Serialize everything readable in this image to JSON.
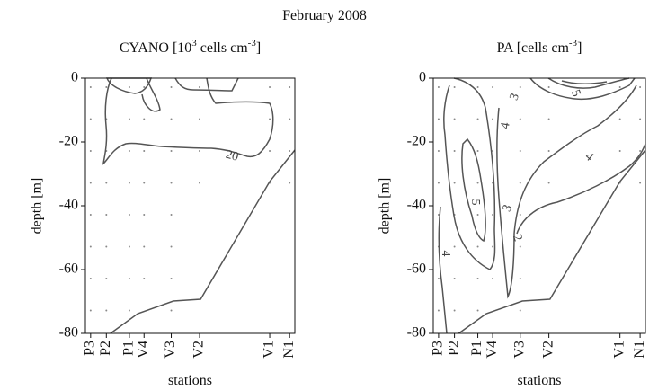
{
  "title": "February 2008",
  "chart_data": [
    {
      "type": "contour",
      "title": [
        "CYANO [10",
        "3",
        " cells cm",
        "-3",
        "]"
      ],
      "categories": [
        "P3",
        "P2",
        "P1",
        "V4",
        "V3",
        "V2",
        "V1",
        "N1"
      ],
      "ylim": [
        -80,
        0
      ],
      "yticks": [
        0,
        -20,
        -40,
        -60,
        -80
      ],
      "xlabel": "stations",
      "ylabel": "depth [m]",
      "contour_labels": [
        20
      ]
    },
    {
      "type": "contour",
      "title": [
        "PA [cells cm",
        "-3",
        "]"
      ],
      "categories": [
        "P3",
        "P2",
        "P1",
        "V4",
        "V3",
        "V2",
        "V1",
        "N1"
      ],
      "ylim": [
        -80,
        0
      ],
      "yticks": [
        0,
        -20,
        -40,
        -60,
        -80
      ],
      "xlabel": "stations",
      "ylabel": "depth [m]",
      "contour_labels": [
        3,
        5,
        4,
        4,
        5,
        3,
        2,
        4
      ]
    }
  ]
}
